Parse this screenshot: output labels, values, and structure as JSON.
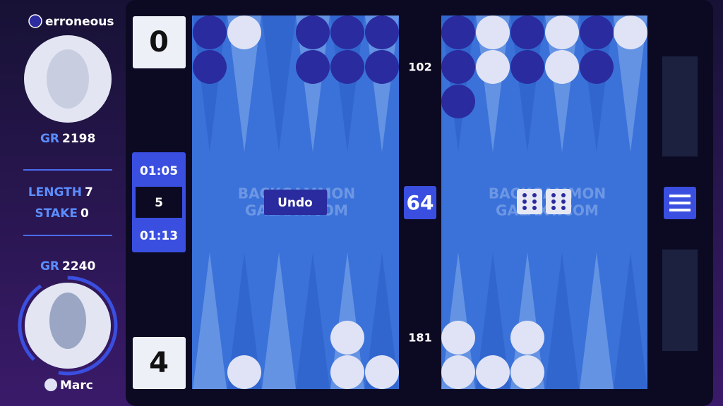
{
  "players": {
    "top": {
      "name": "erroneous",
      "rating_label": "GR",
      "rating": 2198
    },
    "bottom": {
      "name": "Marc",
      "rating_label": "GR",
      "rating": 2240
    }
  },
  "match": {
    "length_label": "LENGTH",
    "length": 7,
    "stake_label": "STAKE",
    "stake": 0
  },
  "scores": {
    "top": 0,
    "bottom": 4
  },
  "clock": {
    "top": "01:05",
    "delay": 5,
    "bottom": "01:13"
  },
  "board": {
    "undo": "Undo",
    "pip_top": 102,
    "pip_bottom": 181,
    "cube": 64,
    "watermark": [
      "BACKGAMMON",
      "GALAXY.COM"
    ]
  }
}
